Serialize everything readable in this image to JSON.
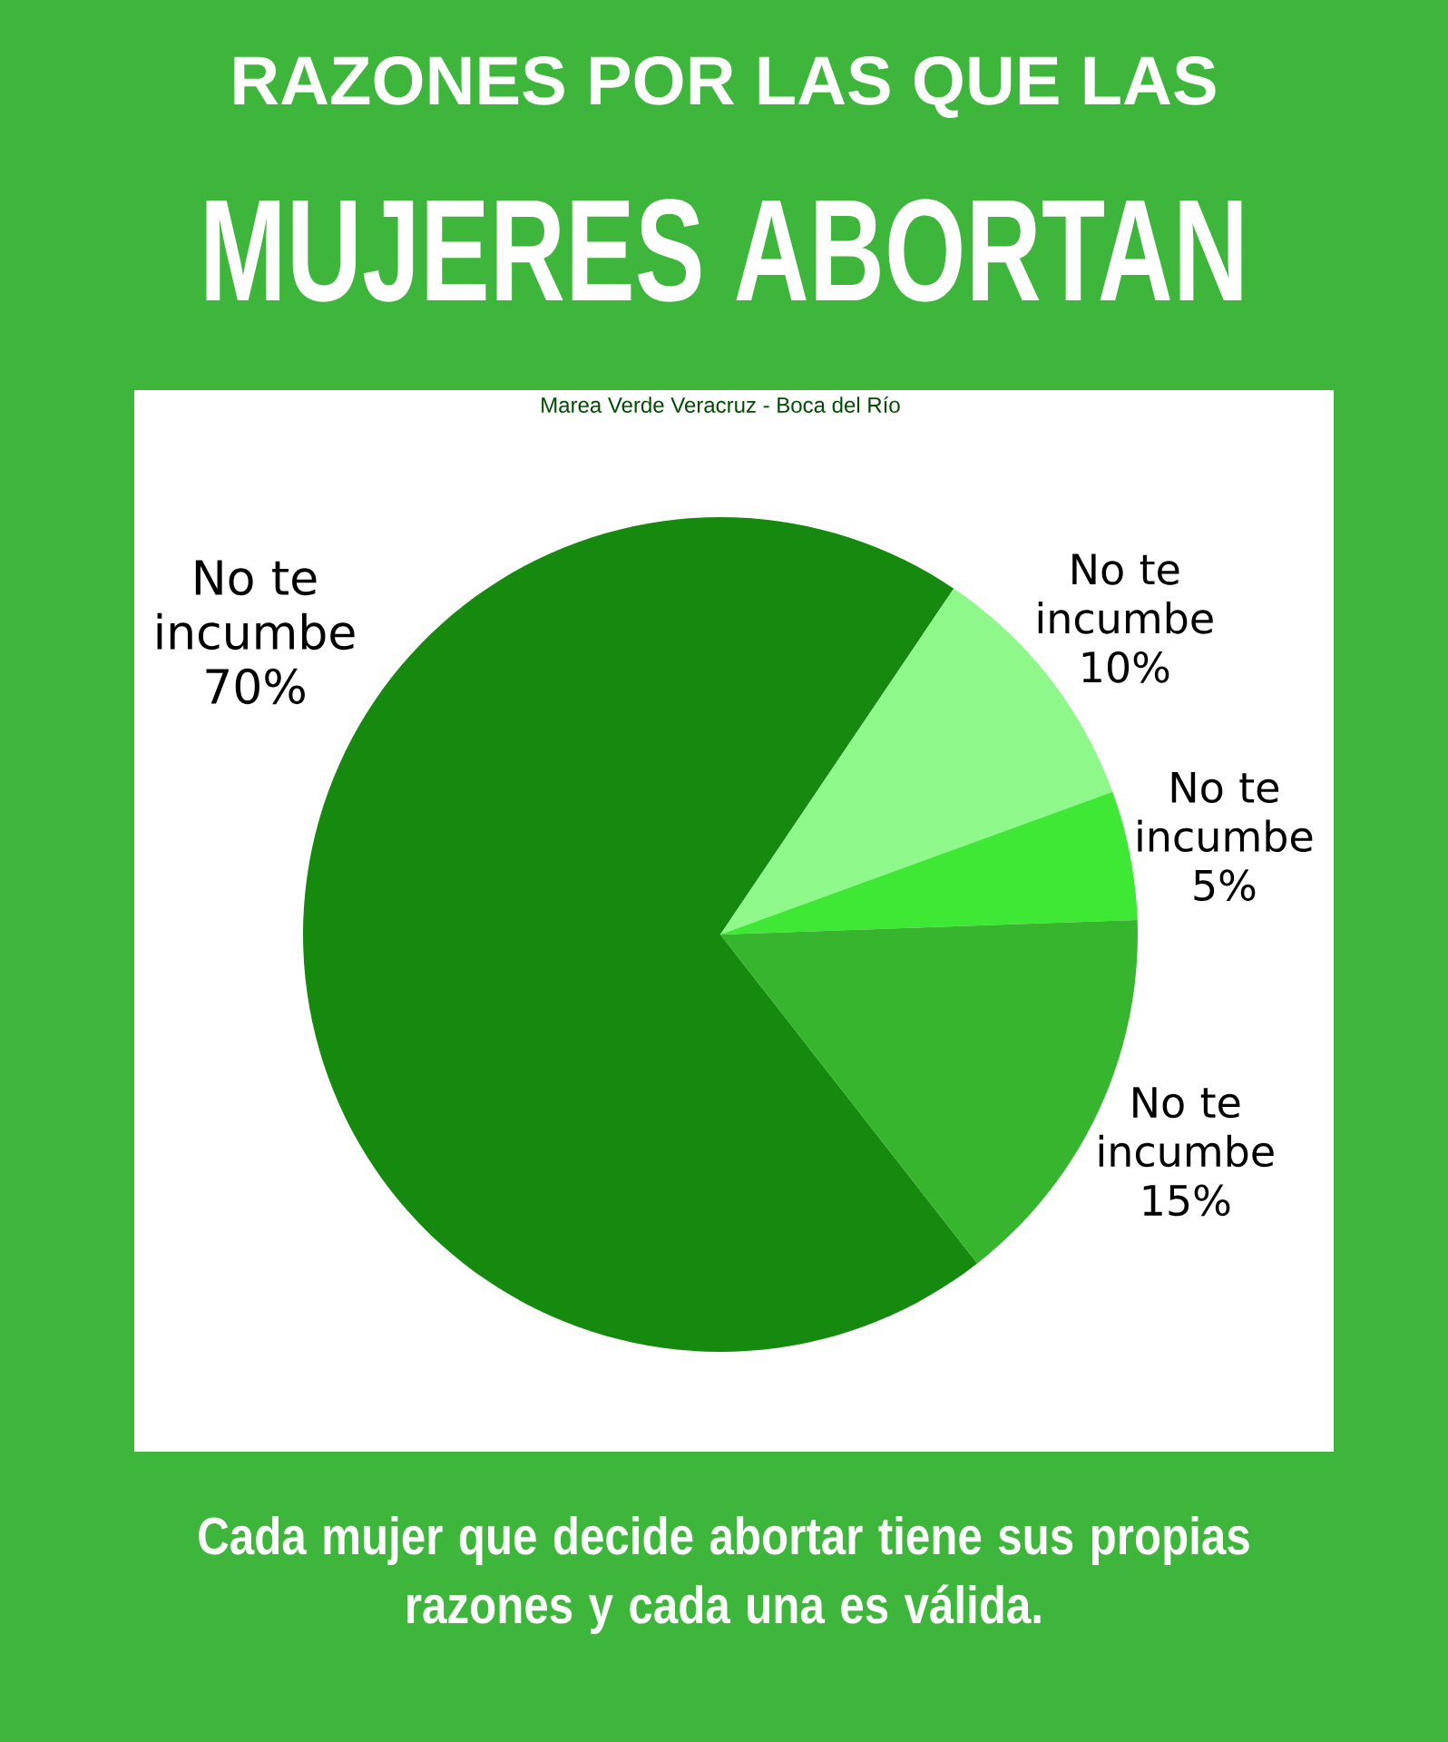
{
  "chart_data": {
    "type": "pie",
    "title": "RAZONES POR LAS QUE LAS",
    "subtitle": "MUJERES ABORTAN",
    "categories": [
      "No te incumbe",
      "No te incumbe",
      "No te incumbe",
      "No te incumbe"
    ],
    "values": [
      70,
      10,
      5,
      15
    ],
    "colors": [
      "#168a0e",
      "#8ef98a",
      "#3ee834",
      "#37b52f"
    ],
    "value_labels": [
      "70%",
      "10%",
      "5%",
      "15%"
    ],
    "annotations": [
      "Marea Verde Veracruz - Boca del Río",
      "Cada mujer que decide abortar tiene sus propias razones y cada una es válida."
    ]
  }
}
